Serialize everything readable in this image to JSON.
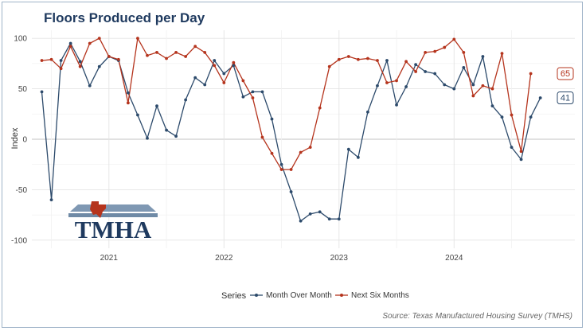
{
  "chart_data": {
    "type": "line",
    "title": "Floors Produced per Day",
    "xlabel": "",
    "ylabel": "Index",
    "ylim": [
      -108,
      108
    ],
    "yticks": [
      100,
      50,
      0,
      -50,
      -100
    ],
    "xlim": [
      2020.33,
      2025.05
    ],
    "xticks": [
      {
        "label": "2021",
        "value": 2021.0
      },
      {
        "label": "2022",
        "value": 2022.0
      },
      {
        "label": "2023",
        "value": 2023.0
      },
      {
        "label": "2024",
        "value": 2024.0
      }
    ],
    "grid": true,
    "legend": {
      "title": "Series",
      "position": "bottom"
    },
    "source": "Source: Texas Manufactured Housing Survey (TMHS)",
    "start_month": "2020-06",
    "series": [
      {
        "name": "Month Over Month",
        "color": "#2c4a6b",
        "end_label": "41",
        "values": [
          47,
          -60,
          78,
          95,
          77,
          53,
          72,
          82,
          78,
          46,
          24,
          1,
          33,
          9,
          3,
          39,
          61,
          54,
          78,
          65,
          73,
          42,
          47,
          47,
          20,
          -25,
          -52,
          -81,
          -74,
          -72,
          -79,
          -79,
          -10,
          -18,
          27,
          53,
          78,
          34,
          52,
          74,
          67,
          65,
          54,
          50,
          71,
          54,
          82,
          33,
          22,
          -8,
          -20,
          22,
          41
        ]
      },
      {
        "name": "Next Six Months",
        "color": "#b5341d",
        "end_label": "65",
        "values": [
          78,
          79,
          70,
          92,
          72,
          95,
          100,
          82,
          79,
          36,
          100,
          83,
          86,
          80,
          86,
          82,
          92,
          86,
          73,
          56,
          76,
          58,
          41,
          2,
          -14,
          -30,
          -30,
          -13,
          -8,
          31,
          72,
          79,
          82,
          79,
          80,
          78,
          56,
          58,
          77,
          67,
          86,
          87,
          91,
          99,
          86,
          43,
          53,
          50,
          85,
          24,
          -12,
          65
        ]
      }
    ]
  },
  "logo": {
    "text": "TMHA"
  }
}
